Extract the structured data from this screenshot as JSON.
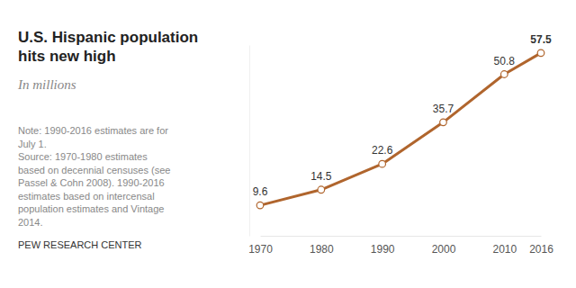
{
  "chart_data": {
    "type": "line",
    "title": "U.S. Hispanic population hits new high",
    "subtitle": "In millions",
    "note": "Note: 1990-2016 estimates are for July 1.",
    "source": "Source: 1970-1980 estimates based on decennial censuses (see Passel & Cohn 2008). 1990-2016 estimates based on intercensal population estimates and Vintage 2014.",
    "credit": "PEW RESEARCH CENTER",
    "x": [
      1970,
      1980,
      1990,
      2000,
      2010,
      2016
    ],
    "values": [
      9.6,
      14.5,
      22.6,
      35.7,
      50.8,
      57.5
    ],
    "color": "#b0652d",
    "xlim": [
      1970,
      2016
    ],
    "xticks": [
      1970,
      1980,
      1990,
      2000,
      2010,
      2016
    ],
    "ylim": [
      0,
      60
    ],
    "tick_labels": "x",
    "data_labels": true,
    "marker": "circle",
    "grid": false
  }
}
